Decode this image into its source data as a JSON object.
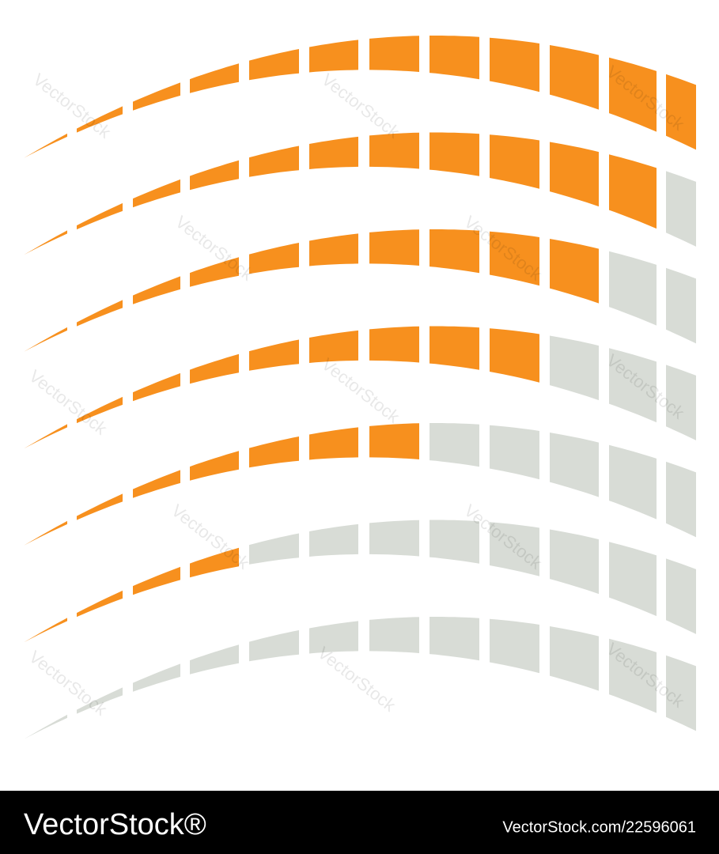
{
  "watermark": "VectorStock",
  "footer": {
    "logo": "VectorStock®",
    "url": "VectorStock.com/22596061"
  }
}
